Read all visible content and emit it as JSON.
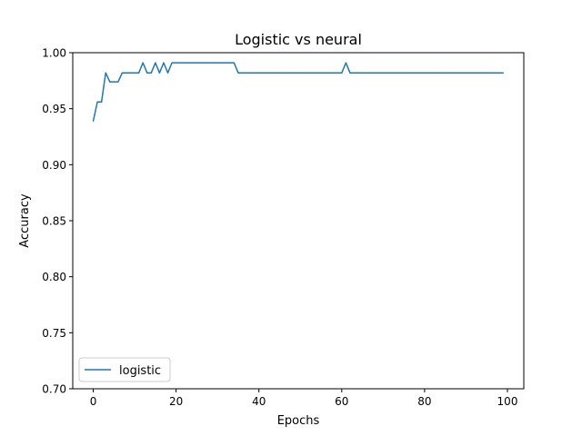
{
  "chart_data": {
    "type": "line",
    "title": "Logistic vs neural",
    "xlabel": "Epochs",
    "ylabel": "Accuracy",
    "xlim": [
      -4.95,
      103.95
    ],
    "ylim": [
      0.7,
      1.0
    ],
    "xticks": [
      0,
      20,
      40,
      60,
      80,
      100
    ],
    "xtick_labels": [
      "0",
      "20",
      "40",
      "60",
      "80",
      "100"
    ],
    "yticks": [
      0.7,
      0.75,
      0.8,
      0.85,
      0.9,
      0.95,
      1.0
    ],
    "ytick_labels": [
      "0.70",
      "0.75",
      "0.80",
      "0.85",
      "0.90",
      "0.95",
      "1.00"
    ],
    "grid": false,
    "legend_position": "lower left",
    "series": [
      {
        "name": "logistic",
        "color": "#1f77b4",
        "x": [
          0,
          1,
          2,
          3,
          4,
          5,
          6,
          7,
          8,
          9,
          10,
          11,
          12,
          13,
          14,
          15,
          16,
          17,
          18,
          19,
          20,
          21,
          22,
          23,
          24,
          25,
          26,
          27,
          28,
          29,
          30,
          31,
          32,
          33,
          34,
          35,
          36,
          37,
          38,
          39,
          40,
          41,
          42,
          43,
          44,
          45,
          46,
          47,
          48,
          49,
          50,
          51,
          52,
          53,
          54,
          55,
          56,
          57,
          58,
          59,
          60,
          61,
          62,
          63,
          64,
          65,
          66,
          67,
          68,
          69,
          70,
          71,
          72,
          73,
          74,
          75,
          76,
          77,
          78,
          79,
          80,
          81,
          82,
          83,
          84,
          85,
          86,
          87,
          88,
          89,
          90,
          91,
          92,
          93,
          94,
          95,
          96,
          97,
          98,
          99
        ],
        "y": [
          0.939,
          0.956,
          0.956,
          0.982,
          0.974,
          0.974,
          0.974,
          0.982,
          0.982,
          0.982,
          0.982,
          0.982,
          0.991,
          0.982,
          0.982,
          0.991,
          0.982,
          0.991,
          0.982,
          0.991,
          0.991,
          0.991,
          0.991,
          0.991,
          0.991,
          0.991,
          0.991,
          0.991,
          0.991,
          0.991,
          0.991,
          0.991,
          0.991,
          0.991,
          0.991,
          0.982,
          0.982,
          0.982,
          0.982,
          0.982,
          0.982,
          0.982,
          0.982,
          0.982,
          0.982,
          0.982,
          0.982,
          0.982,
          0.982,
          0.982,
          0.982,
          0.982,
          0.982,
          0.982,
          0.982,
          0.982,
          0.982,
          0.982,
          0.982,
          0.982,
          0.982,
          0.991,
          0.982,
          0.982,
          0.982,
          0.982,
          0.982,
          0.982,
          0.982,
          0.982,
          0.982,
          0.982,
          0.982,
          0.982,
          0.982,
          0.982,
          0.982,
          0.982,
          0.982,
          0.982,
          0.982,
          0.982,
          0.982,
          0.982,
          0.982,
          0.982,
          0.982,
          0.982,
          0.982,
          0.982,
          0.982,
          0.982,
          0.982,
          0.982,
          0.982,
          0.982,
          0.982,
          0.982,
          0.982,
          0.982
        ]
      }
    ]
  }
}
